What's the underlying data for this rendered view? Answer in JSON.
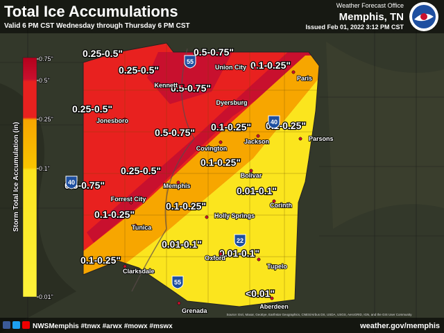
{
  "header": {
    "title": "Total Ice Accumulations",
    "subtitle": "Valid 6 PM CST Wednesday through Thursday 6 PM CST",
    "office": "Weather Forecast Office",
    "location": "Memphis, TN",
    "issued": "Issued Feb 01, 2022 3:12 PM CST"
  },
  "legend": {
    "title": "Storm Total Ice Accumulation (in)",
    "ticks": [
      "0.75\"",
      "0.5\"",
      "0.25\"",
      "0.1\"",
      "0.01\""
    ]
  },
  "zone_labels": [
    "0.25-0.5\"",
    "0.5-0.75\"",
    "0.1-0.25\"",
    "0.25-0.5\"",
    "0.5-0.75\"",
    "0.25-0.5\"",
    "0.5-0.75\"",
    "0.1-0.25\"",
    "0.1-0.25\"",
    "0.1-0.25\"",
    "0.25-0.5\"",
    "0.5-0.75\"",
    "0.01-0.1\"",
    "0.1-0.25\"",
    "0.1-0.25\"",
    "0.01-0.1\"",
    "0.01-0.1\"",
    "0.1-0.25\"",
    "<0.01\""
  ],
  "cities": [
    "Kennett",
    "Union City",
    "Paris",
    "Dyersburg",
    "Jonesboro",
    "Covington",
    "Jackson",
    "Parsons",
    "Bolivar",
    "Memphis",
    "Forrest City",
    "Corinth",
    "Tunica",
    "Holly Springs",
    "Oxford",
    "Tupelo",
    "Clarksdale",
    "Grenada",
    "Aberdeen"
  ],
  "highways": [
    "55",
    "40",
    "40",
    "22",
    "55"
  ],
  "source": "Source: Esri, Maxar, GeoEye, Earthstar Geographics, CNES/Airbus DS, USDA, USGS, AeroGRID, IGN, and the GIS User Community",
  "footer": {
    "social": "NWSMemphis #tnwx #arwx #mowx #mswx",
    "url": "weather.gov/memphis"
  }
}
